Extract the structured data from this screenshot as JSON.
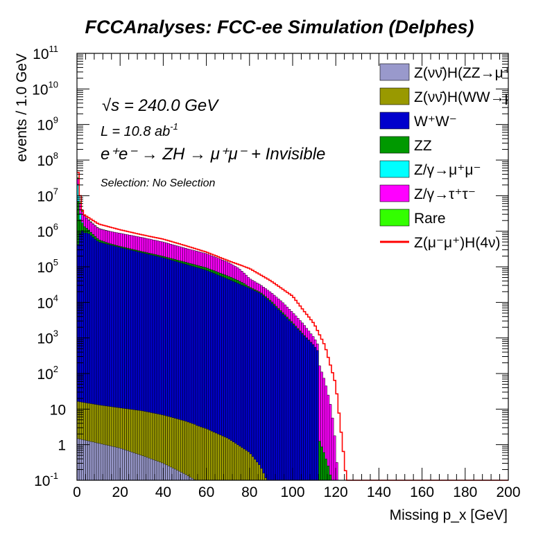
{
  "chart_data": {
    "type": "area",
    "stacked": true,
    "title": "FCCAnalyses: FCC-ee Simulation (Delphes)",
    "xlabel": "Missing p_x [GeV]",
    "ylabel": "events / 1.0 GeV",
    "xlim": [
      0,
      200
    ],
    "ylim": [
      0.1,
      100000000000.0
    ],
    "yscale": "log",
    "legend_position": "top-right",
    "annotations": {
      "sqrts": "s = 240.0 GeV",
      "lumi": "L = 10.8 ab",
      "lumi_exp": "-1",
      "process": "e⁺e⁻ → ZH → μ⁺μ⁻ + Invisible",
      "selection": "Selection: No Selection"
    },
    "x_ticks": [
      0,
      20,
      40,
      60,
      80,
      100,
      120,
      140,
      160,
      180,
      200
    ],
    "y_ticks": [
      {
        "base": "10",
        "exp": "-1",
        "value": 0.1
      },
      {
        "base": "1",
        "exp": "",
        "value": 1
      },
      {
        "base": "10",
        "exp": "",
        "value": 10
      },
      {
        "base": "10",
        "exp": "2",
        "value": 100
      },
      {
        "base": "10",
        "exp": "3",
        "value": 1000
      },
      {
        "base": "10",
        "exp": "4",
        "value": 10000
      },
      {
        "base": "10",
        "exp": "5",
        "value": 100000
      },
      {
        "base": "10",
        "exp": "6",
        "value": 1000000
      },
      {
        "base": "10",
        "exp": "7",
        "value": 10000000
      },
      {
        "base": "10",
        "exp": "8",
        "value": 100000000
      },
      {
        "base": "10",
        "exp": "9",
        "value": 1000000000
      },
      {
        "base": "10",
        "exp": "10",
        "value": 10000000000
      },
      {
        "base": "10",
        "exp": "11",
        "value": 100000000000
      }
    ],
    "series": [
      {
        "name": "Z(νν̄)H(ZZ→μ⁺μ⁻ν⁺",
        "color": "#9999cc",
        "x": [
          0,
          10,
          20,
          30,
          40,
          50,
          55
        ],
        "y": [
          1.5,
          1.1,
          0.8,
          0.5,
          0.3,
          0.15,
          0.1
        ]
      },
      {
        "name": "Z(νν̄)H(WW→μ⁺νμ",
        "color": "#999900",
        "x": [
          0,
          10,
          20,
          30,
          40,
          50,
          60,
          70,
          80,
          85,
          88
        ],
        "y": [
          15,
          12,
          10,
          8.5,
          6.5,
          4.5,
          2.8,
          1.5,
          0.6,
          0.25,
          0.1
        ]
      },
      {
        "name": "W⁺W⁻",
        "color": "#0000cc",
        "x": [
          0,
          1,
          2,
          3,
          5,
          10,
          20,
          30,
          40,
          50,
          60,
          70,
          80,
          85,
          90,
          95,
          100,
          105,
          110,
          112
        ],
        "y": [
          300000,
          600000,
          1200000,
          900000,
          900000,
          500000,
          350000,
          250000,
          180000,
          120000,
          80000,
          45000,
          25000,
          18000,
          10000,
          5000,
          2500,
          1200,
          600,
          400
        ]
      },
      {
        "name": "ZZ",
        "color": "#009900",
        "x": [
          0,
          1,
          2,
          3,
          5,
          8,
          10,
          15,
          20,
          30,
          40,
          50,
          60,
          70,
          75,
          78,
          80,
          82,
          85,
          90,
          95,
          100,
          105,
          108,
          110,
          112,
          115,
          117,
          118
        ],
        "y": [
          20000000,
          2000000,
          800000,
          500000,
          250000,
          120000,
          80000,
          35000,
          25000,
          20000,
          17000,
          16000,
          14000,
          10000,
          7000,
          4500,
          2000,
          1500,
          1300,
          900,
          500,
          200,
          60,
          20,
          5,
          1.5,
          0.5,
          0.2,
          0.1
        ]
      },
      {
        "name": "Z/γ→μ⁺μ⁻",
        "color": "#00ffff",
        "x": [
          0,
          1,
          2,
          3,
          5,
          10
        ],
        "y": [
          40000000,
          5000000,
          200000,
          50000,
          10000,
          2000
        ]
      },
      {
        "name": "Z/γ→τ⁺τ⁻",
        "color": "#ff00ff",
        "x": [
          0,
          1,
          2,
          3,
          5,
          10,
          20,
          30,
          40,
          50,
          60,
          70,
          75,
          78,
          80,
          85,
          90,
          95,
          100,
          105,
          110,
          112,
          115,
          118,
          120,
          121
        ],
        "y": [
          20000000,
          4000000,
          2000000,
          1500000,
          1000000,
          600000,
          500000,
          400000,
          300000,
          200000,
          140000,
          80000,
          50000,
          30000,
          20000,
          12000,
          8000,
          5000,
          2500,
          1200,
          400,
          200,
          60,
          10,
          1,
          0.1
        ]
      },
      {
        "name": "Rare",
        "color": "#33ff00",
        "x": [
          0,
          1,
          2,
          3,
          5,
          10,
          15
        ],
        "y": [
          5000000,
          1000000,
          300000,
          150000,
          80000,
          30000,
          10000
        ]
      },
      {
        "name": "Z(μ⁻μ⁺)H(4ν)",
        "color": "#ff0000",
        "style": "line",
        "x": [
          0,
          1,
          2,
          3,
          5,
          10,
          20,
          30,
          40,
          50,
          60,
          70,
          80,
          90,
          100,
          105,
          110,
          115,
          120,
          125,
          200
        ],
        "y": [
          100000000.0,
          20000000.0,
          5000000.0,
          3000000.0,
          2500000.0,
          1600000.0,
          1100000.0,
          800000,
          600000,
          400000,
          260000,
          150000,
          90000,
          40000,
          15000,
          6000,
          2500,
          600,
          50,
          0.1,
          0.1
        ]
      }
    ]
  }
}
